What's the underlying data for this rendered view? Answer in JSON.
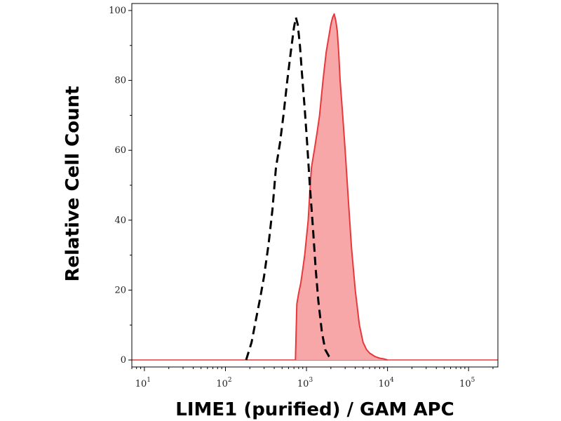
{
  "chart_data": {
    "type": "area",
    "xlabel": "LIME1 (purified) / GAM APC",
    "ylabel": "Relative Cell Count",
    "xscale": "log",
    "xlim": [
      7,
      230000
    ],
    "ylim": [
      -2,
      102
    ],
    "x_ticks": [
      {
        "base": "10",
        "exp": "1",
        "value": 10
      },
      {
        "base": "10",
        "exp": "2",
        "value": 100
      },
      {
        "base": "10",
        "exp": "3",
        "value": 1000
      },
      {
        "base": "10",
        "exp": "4",
        "value": 10000
      },
      {
        "base": "10",
        "exp": "5",
        "value": 100000
      }
    ],
    "y_ticks": [
      {
        "label": "0",
        "value": 0
      },
      {
        "label": "20",
        "value": 20
      },
      {
        "label": "40",
        "value": 40
      },
      {
        "label": "60",
        "value": 60
      },
      {
        "label": "80",
        "value": 80
      },
      {
        "label": "100",
        "value": 100
      }
    ],
    "grid": false,
    "series": [
      {
        "style": "dashed",
        "color": "#000000",
        "x": [
          180,
          210,
          240,
          270,
          300,
          340,
          380,
          420,
          470,
          520,
          580,
          640,
          700,
          740,
          780,
          830,
          880,
          950,
          1020,
          1100,
          1200,
          1300,
          1400,
          1550,
          1700,
          1900,
          2100
        ],
        "y": [
          0,
          5,
          12,
          18,
          24,
          33,
          43,
          55,
          62,
          70,
          80,
          88,
          95,
          98,
          96,
          90,
          82,
          72,
          62,
          50,
          38,
          26,
          17,
          8,
          3,
          1,
          0
        ]
      },
      {
        "style": "filled",
        "color": "#e8383b",
        "fill": "#f8a7a9",
        "x": [
          730,
          760,
          800,
          850,
          900,
          950,
          1000,
          1050,
          1100,
          1150,
          1250,
          1350,
          1450,
          1600,
          1750,
          1900,
          2000,
          2100,
          2200,
          2300,
          2400,
          2500,
          2600,
          2800,
          3000,
          3300,
          3600,
          4000,
          4500,
          5000,
          5500,
          6000,
          7000,
          8000,
          9000,
          10000
        ],
        "y": [
          0,
          16,
          19,
          22,
          26,
          30,
          35,
          40,
          48,
          55,
          60,
          65,
          70,
          80,
          88,
          93,
          96,
          98,
          99,
          97,
          94,
          88,
          80,
          70,
          60,
          45,
          32,
          20,
          10,
          5,
          3,
          2,
          1,
          0.5,
          0.3,
          0
        ]
      }
    ]
  }
}
